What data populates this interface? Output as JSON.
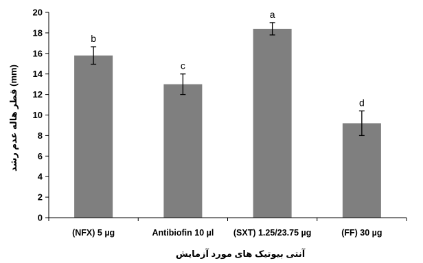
{
  "chart_data": {
    "type": "bar",
    "categories": [
      "(NFX) 5 µg",
      "Antibiofin 10 µl",
      "(SXT) 1.25/23.75 µg",
      "(FF) 30 µg"
    ],
    "values": [
      15.8,
      13.0,
      18.4,
      9.2
    ],
    "errors": [
      0.85,
      1.0,
      0.6,
      1.2
    ],
    "significance_letters": [
      "b",
      "c",
      "a",
      "d"
    ],
    "xlabel": "آنتی بیوتیک های مورد آزمایش",
    "ylabel": "قطر هاله عدم رشد (mm)",
    "ylim": [
      0,
      20
    ],
    "yticks": [
      0,
      2,
      4,
      6,
      8,
      10,
      12,
      14,
      16,
      18,
      20
    ],
    "grid": false,
    "legend": "none",
    "colors": {
      "bar": "#7f7f7f",
      "error_bar": "#000000",
      "axis": "#000000"
    }
  }
}
